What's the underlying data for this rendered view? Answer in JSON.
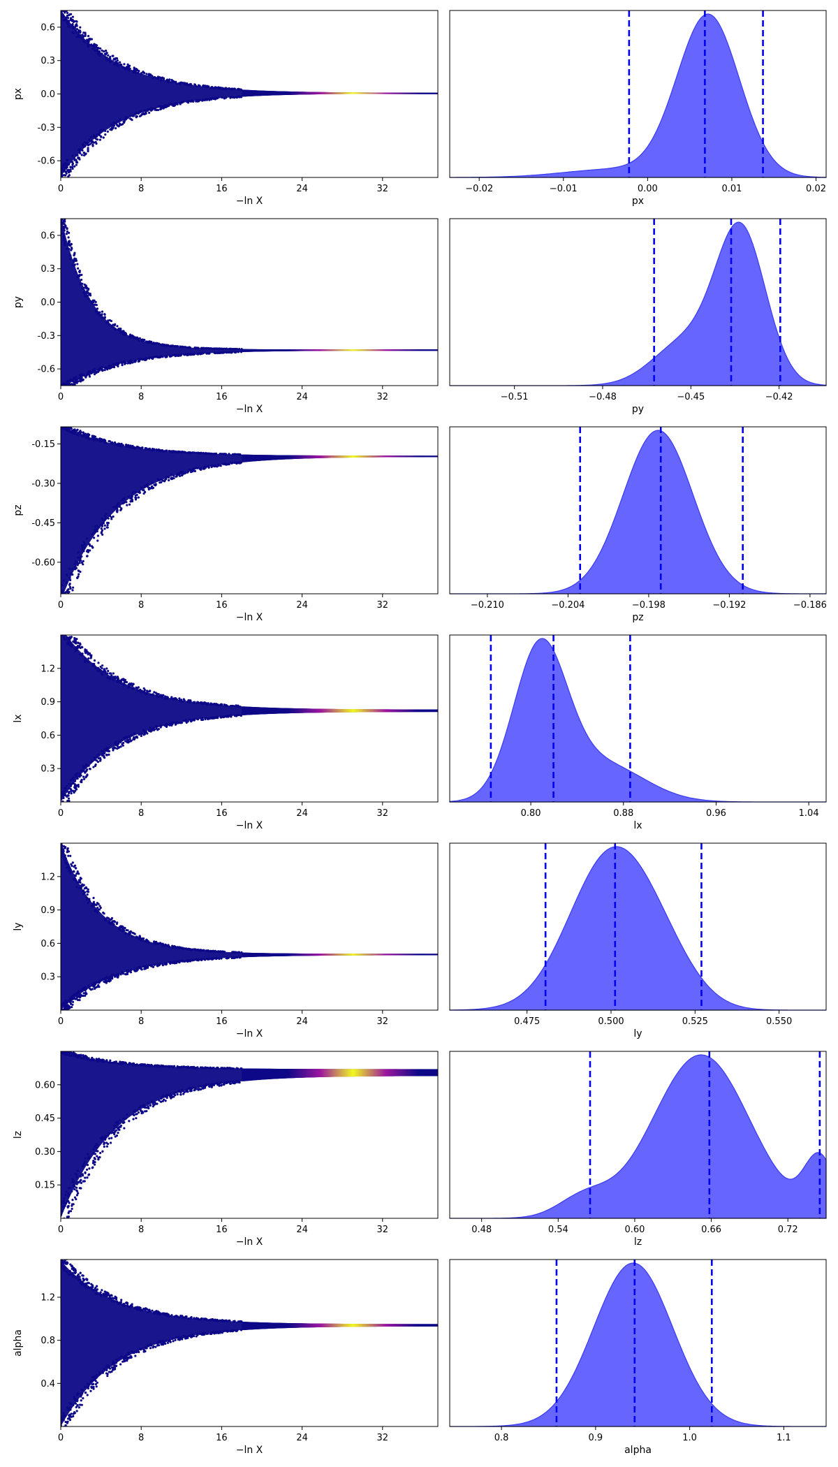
{
  "colors": {
    "trace_low": "#0d0887",
    "trace_mid": "#9c179e",
    "trace_high": "#f0f921",
    "kde_fill": "#6666ff",
    "kde_edge": "#3a3af0",
    "quantile_line": "#0000ee"
  },
  "chart_data": [
    {
      "type": "scatter",
      "param": "px",
      "xlabel": "−ln X",
      "ylabel": "px",
      "xlim": [
        0,
        37.5
      ],
      "xticks": [
        "0",
        "8",
        "16",
        "24",
        "32"
      ],
      "ylim": [
        -0.75,
        0.75
      ],
      "yticks": [
        "-0.6",
        "-0.3",
        "0.0",
        "0.3",
        "0.6"
      ],
      "ytick_values": [
        -0.6,
        -0.3,
        0.0,
        0.3,
        0.6
      ],
      "converge_value": 0.007,
      "spread_up_start": 0.75,
      "spread_up_end": 0.003,
      "spread_down_start": 0.75,
      "spread_down_end": 0.003,
      "peak_x": 29
    },
    {
      "type": "area",
      "param": "px",
      "xlabel": "px",
      "xlim": [
        -0.0235,
        0.0212
      ],
      "xticks": [
        "-0.02",
        "-0.01",
        "0.00",
        "0.01",
        "0.02"
      ],
      "xtick_values": [
        -0.02,
        -0.01,
        0.0,
        0.01,
        0.02
      ],
      "quantiles": [
        -0.0022,
        0.0068,
        0.0137
      ],
      "components": [
        {
          "mu": 0.0072,
          "sigma": 0.0037,
          "w": 1.0
        },
        {
          "mu": -0.004,
          "sigma": 0.006,
          "w": 0.05
        }
      ]
    },
    {
      "type": "scatter",
      "param": "py",
      "xlabel": "−ln X",
      "ylabel": "py",
      "xlim": [
        0,
        37.5
      ],
      "xticks": [
        "0",
        "8",
        "16",
        "24",
        "32"
      ],
      "ylim": [
        -0.75,
        0.75
      ],
      "yticks": [
        "-0.6",
        "-0.3",
        "0.0",
        "0.3",
        "0.6"
      ],
      "ytick_values": [
        -0.6,
        -0.3,
        0.0,
        0.3,
        0.6
      ],
      "converge_value": -0.43,
      "spread_up_start": 1.2,
      "spread_up_end": 0.005,
      "spread_down_start": 0.35,
      "spread_down_end": 0.005,
      "up_decay": 3.0,
      "peak_x": 29
    },
    {
      "type": "area",
      "param": "py",
      "xlabel": "py",
      "xlim": [
        -0.532,
        -0.404
      ],
      "xticks": [
        "-0.51",
        "-0.48",
        "-0.45",
        "-0.42"
      ],
      "xtick_values": [
        -0.51,
        -0.48,
        -0.45,
        -0.42
      ],
      "quantiles": [
        -0.4625,
        -0.4363,
        -0.4196
      ],
      "components": [
        {
          "mu": -0.433,
          "sigma": 0.0085,
          "w": 1.0
        },
        {
          "mu": -0.452,
          "sigma": 0.011,
          "w": 0.28
        }
      ]
    },
    {
      "type": "scatter",
      "param": "pz",
      "xlabel": "−ln X",
      "ylabel": "pz",
      "xlim": [
        0,
        37.5
      ],
      "xticks": [
        "0",
        "8",
        "16",
        "24",
        "32"
      ],
      "ylim": [
        -0.72,
        -0.085
      ],
      "yticks": [
        "-0.60",
        "-0.45",
        "-0.30",
        "-0.15"
      ],
      "ytick_values": [
        -0.6,
        -0.45,
        -0.3,
        -0.15
      ],
      "converge_value": -0.197,
      "spread_up_start": 0.12,
      "spread_up_end": 0.002,
      "spread_down_start": 0.55,
      "spread_down_end": 0.002,
      "peak_x": 29
    },
    {
      "type": "area",
      "param": "pz",
      "xlabel": "pz",
      "xlim": [
        -0.2128,
        -0.1848
      ],
      "xticks": [
        "-0.210",
        "-0.204",
        "-0.198",
        "-0.192",
        "-0.186"
      ],
      "xtick_values": [
        -0.21,
        -0.204,
        -0.198,
        -0.192,
        -0.186
      ],
      "quantiles": [
        -0.2031,
        -0.1971,
        -0.191
      ],
      "components": [
        {
          "mu": -0.1973,
          "sigma": 0.0026,
          "w": 1.0
        }
      ]
    },
    {
      "type": "scatter",
      "param": "lx",
      "xlabel": "−ln X",
      "ylabel": "lx",
      "xlim": [
        0,
        37.5
      ],
      "xticks": [
        "0",
        "8",
        "16",
        "24",
        "32"
      ],
      "ylim": [
        0.0,
        1.5
      ],
      "yticks": [
        "0.3",
        "0.6",
        "0.9",
        "1.2"
      ],
      "ytick_values": [
        0.3,
        0.6,
        0.9,
        1.2
      ],
      "converge_value": 0.82,
      "spread_up_start": 0.75,
      "spread_up_end": 0.01,
      "spread_down_start": 0.82,
      "spread_down_end": 0.01,
      "peak_x": 29
    },
    {
      "type": "area",
      "param": "lx",
      "xlabel": "lx",
      "xlim": [
        0.73,
        1.055
      ],
      "xticks": [
        "0.80",
        "0.88",
        "0.96",
        "1.04"
      ],
      "xtick_values": [
        0.8,
        0.88,
        0.96,
        1.04
      ],
      "quantiles": [
        0.7655,
        0.8196,
        0.8858
      ],
      "components": [
        {
          "mu": 0.808,
          "sigma": 0.023,
          "w": 1.0
        },
        {
          "mu": 0.862,
          "sigma": 0.036,
          "w": 0.25
        }
      ]
    },
    {
      "type": "scatter",
      "param": "ly",
      "xlabel": "−ln X",
      "ylabel": "ly",
      "xlim": [
        0,
        37.5
      ],
      "xticks": [
        "0",
        "8",
        "16",
        "24",
        "32"
      ],
      "ylim": [
        0.0,
        1.5
      ],
      "yticks": [
        "0.3",
        "0.6",
        "0.9",
        "1.2"
      ],
      "ytick_values": [
        0.3,
        0.6,
        0.9,
        1.2
      ],
      "converge_value": 0.5,
      "spread_up_start": 1.0,
      "spread_up_end": 0.006,
      "spread_down_start": 0.5,
      "spread_down_end": 0.006,
      "up_decay": 4.0,
      "peak_x": 29
    },
    {
      "type": "area",
      "param": "ly",
      "xlabel": "ly",
      "xlim": [
        0.452,
        0.564
      ],
      "xticks": [
        "0.475",
        "0.500",
        "0.525",
        "0.550"
      ],
      "xtick_values": [
        0.475,
        0.5,
        0.525,
        0.55
      ],
      "quantiles": [
        0.4805,
        0.5012,
        0.5269
      ],
      "components": [
        {
          "mu": 0.5,
          "sigma": 0.0125,
          "w": 1.0
        },
        {
          "mu": 0.516,
          "sigma": 0.01,
          "w": 0.2
        }
      ]
    },
    {
      "type": "scatter",
      "param": "lz",
      "xlabel": "−ln X",
      "ylabel": "lz",
      "xlim": [
        0,
        37.5
      ],
      "xticks": [
        "0",
        "8",
        "16",
        "24",
        "32"
      ],
      "ylim": [
        0.0,
        0.75
      ],
      "yticks": [
        "0.15",
        "0.30",
        "0.45",
        "0.60"
      ],
      "ytick_values": [
        0.15,
        0.3,
        0.45,
        0.6
      ],
      "converge_value": 0.66,
      "spread_up_start": 0.09,
      "spread_up_end": 0.01,
      "spread_down_start": 0.66,
      "spread_down_end": 0.02,
      "peak_x": 29
    },
    {
      "type": "area",
      "param": "lz",
      "xlabel": "lz",
      "xlim": [
        0.455,
        0.75
      ],
      "xticks": [
        "0.48",
        "0.54",
        "0.60",
        "0.66",
        "0.72"
      ],
      "xtick_values": [
        0.48,
        0.54,
        0.6,
        0.66,
        0.72
      ],
      "quantiles": [
        0.565,
        0.6585,
        0.745
      ],
      "components": [
        {
          "mu": 0.652,
          "sigma": 0.038,
          "w": 1.0
        },
        {
          "mu": 0.745,
          "sigma": 0.012,
          "w": 0.35
        },
        {
          "mu": 0.56,
          "sigma": 0.02,
          "w": 0.12
        }
      ]
    },
    {
      "type": "scatter",
      "param": "alpha",
      "xlabel": "−ln X",
      "ylabel": "alpha",
      "xlim": [
        0,
        37.5
      ],
      "xticks": [
        "0",
        "8",
        "16",
        "24",
        "32"
      ],
      "ylim": [
        0.0,
        1.55
      ],
      "yticks": [
        "0.4",
        "0.8",
        "1.2"
      ],
      "ytick_values": [
        0.4,
        0.8,
        1.2
      ],
      "converge_value": 0.94,
      "spread_up_start": 0.6,
      "spread_up_end": 0.01,
      "spread_down_start": 0.94,
      "spread_down_end": 0.01,
      "peak_x": 29
    },
    {
      "type": "area",
      "param": "alpha",
      "xlabel": "alpha",
      "xlim": [
        0.745,
        1.145
      ],
      "xticks": [
        "0.8",
        "0.9",
        "1.0",
        "1.1"
      ],
      "xtick_values": [
        0.8,
        0.9,
        1.0,
        1.1
      ],
      "quantiles": [
        0.8585,
        0.9415,
        1.0235
      ],
      "components": [
        {
          "mu": 0.94,
          "sigma": 0.042,
          "w": 1.0
        }
      ]
    }
  ]
}
